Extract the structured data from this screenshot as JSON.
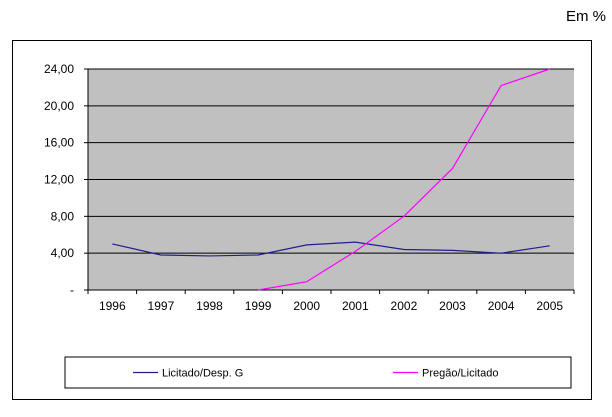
{
  "unit_label": "Em %",
  "chart_data": {
    "type": "line",
    "title": "",
    "xlabel": "",
    "ylabel": "",
    "categories": [
      "1996",
      "1997",
      "1998",
      "1999",
      "2000",
      "2001",
      "2002",
      "2003",
      "2004",
      "2005"
    ],
    "ylim": [
      0,
      24
    ],
    "yticks": [
      0,
      4,
      8,
      12,
      16,
      20,
      24
    ],
    "ytick_labels": [
      "-",
      "4,00",
      "8,00",
      "12,00",
      "16,00",
      "20,00",
      "24,00"
    ],
    "grid": true,
    "legend_position": "bottom",
    "series": [
      {
        "name": "Licitado/Desp. G",
        "color": "#1f1f8f",
        "values": [
          5.0,
          3.8,
          3.7,
          3.8,
          4.9,
          5.2,
          4.4,
          4.3,
          4.0,
          4.8
        ]
      },
      {
        "name": "Pregão/Licitado",
        "color": "#ff00ff",
        "values": [
          null,
          null,
          null,
          0.0,
          0.9,
          4.2,
          8.0,
          13.2,
          22.2,
          24.0
        ]
      }
    ],
    "colors": {
      "plot_background": "#c0c0c0",
      "grid": "#000000"
    }
  }
}
